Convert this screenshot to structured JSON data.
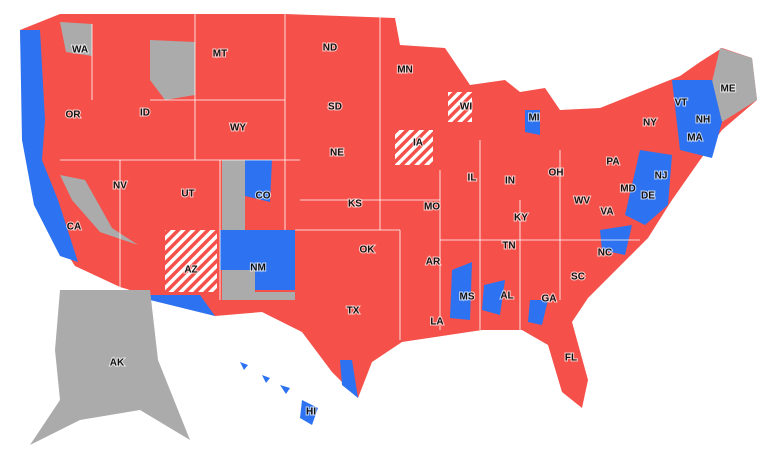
{
  "labels": [
    "WA",
    "MT",
    "ND",
    "MN",
    "OR",
    "ID",
    "WY",
    "SD",
    "WI",
    "MI",
    "VT",
    "NH",
    "ME",
    "NY",
    "MA",
    "NE",
    "IA",
    "IL",
    "IN",
    "OH",
    "PA",
    "NJ",
    "MD",
    "DE",
    "NV",
    "UT",
    "CO",
    "KS",
    "MO",
    "KY",
    "WV",
    "VA",
    "CA",
    "OK",
    "TN",
    "NC",
    "AZ",
    "NM",
    "AR",
    "SC",
    "MS",
    "AL",
    "GA",
    "TX",
    "LA",
    "FL",
    "AK",
    "HI"
  ]
}
